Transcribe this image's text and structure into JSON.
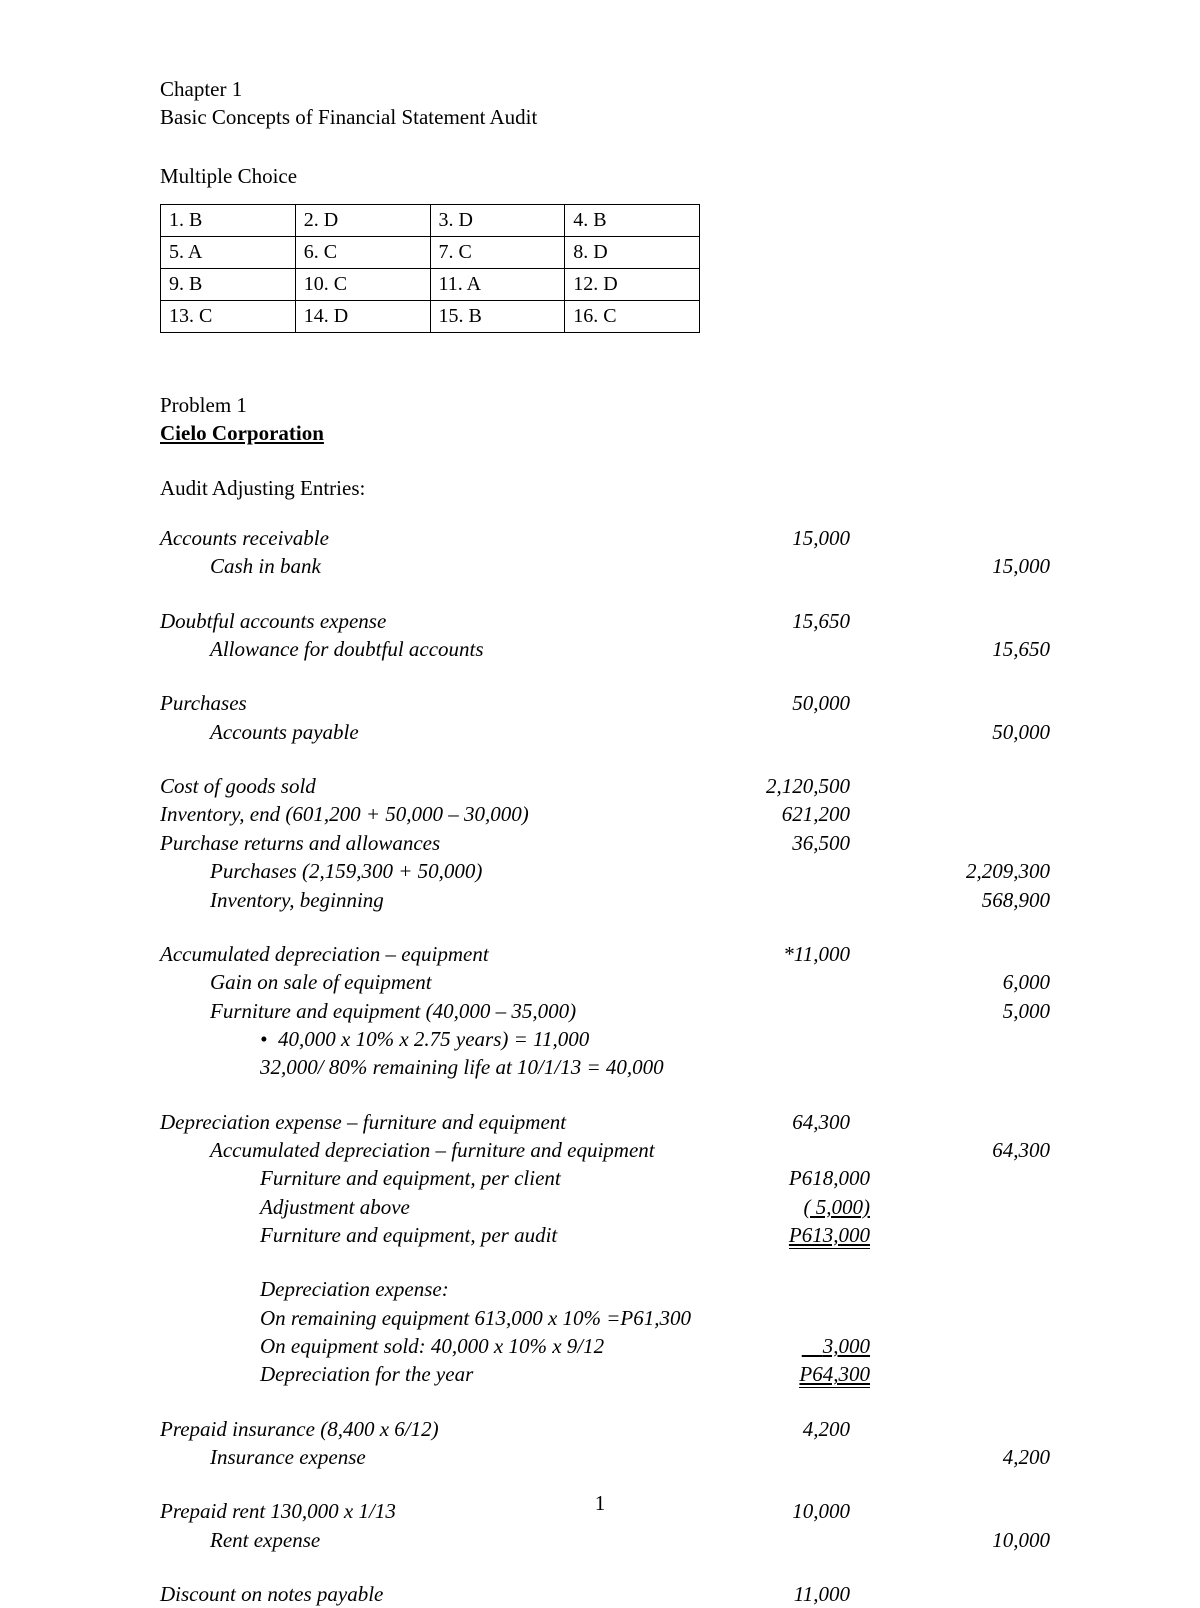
{
  "header": {
    "chapter": "Chapter 1",
    "subtitle": "Basic Concepts of Financial Statement Audit",
    "mcTitle": "Multiple Choice"
  },
  "mcTable": {
    "rows": [
      [
        "1. B",
        "2.   D",
        "3. D",
        "4. B"
      ],
      [
        "5.   A",
        "6.   C",
        "7. C",
        "8. D"
      ],
      [
        "9.  B",
        "10. C",
        "11. A",
        "12. D"
      ],
      [
        "13. C",
        "14.  D",
        "15.  B",
        "16. C"
      ]
    ]
  },
  "problem": {
    "title": "Problem 1",
    "company": "Cielo Corporation",
    "aae": "Audit Adjusting Entries:"
  },
  "entries": {
    "ar": "Accounts receivable",
    "arDr": "15,000",
    "cashInBank": "Cash in bank",
    "cashCr": "15,000",
    "dae": "Doubtful accounts expense",
    "daeDr": "15,650",
    "ada": "Allowance for doubtful accounts",
    "adaCr": "15,650",
    "purchases": "Purchases",
    "purchDr": "50,000",
    "ap": "Accounts payable",
    "apCr": "50,000",
    "cogs": "Cost of goods sold",
    "cogsDr": "2,120,500",
    "invEnd": "Inventory, end   (601,200 + 50,000 – 30,000)",
    "invEndDr": "621,200",
    "pra": "Purchase returns and allowances",
    "praDr": "36,500",
    "purchLine": "Purchases (2,159,300 + 50,000)",
    "purchCr": "2,209,300",
    "invBeg": "Inventory, beginning",
    "invBegCr": "568,900",
    "accDepEq": "Accumulated depreciation – equipment",
    "accDepEqDr": "*11,000",
    "gainSale": "Gain on sale of equipment",
    "gainSaleCr": "6,000",
    "feq": "Furniture and equipment (40,000 – 35,000)",
    "feqCr": "5,000",
    "calc1": "40,000 x 10% x 2.75 years) = 11,000",
    "calc2": "32,000/ 80% remaining life at 10/1/13 = 40,000",
    "depExp": "Depreciation expense – furniture and equipment",
    "depExpDr": "64,300",
    "accDepFeq": "Accumulated depreciation – furniture and equipment",
    "accDepFeqCr": "64,300",
    "feqClientLbl": "Furniture and equipment, per client",
    "feqClientVal": "P618,000",
    "adjAboveLbl": "Adjustment above",
    "adjAboveVal": "(     5,000)",
    "feqAuditLbl": "Furniture and equipment, per audit",
    "feqAuditVal": "P613,000",
    "depExpHdr": "Depreciation expense:",
    "remEq": " On remaining equipment  613,000 x 10% =P61,300",
    "eqSold": " On equipment sold:  40,000 x 10% x 9/12",
    "eqSoldVal": "3,000",
    "depYearLbl": " Depreciation for the year",
    "depYearVal": "P64,300",
    "prepIns": "Prepaid insurance (8,400 x 6/12)",
    "prepInsDr": "4,200",
    "insExp": "Insurance expense",
    "insExpCr": "4,200",
    "prepRent": "Prepaid rent       130,000 x 1/13",
    "prepRentDr": "10,000",
    "rentExp": "Rent expense",
    "rentExpCr": "10,000",
    "discNP": "Discount on notes payable",
    "discNPDr": "11,000"
  },
  "pageNumber": "1"
}
